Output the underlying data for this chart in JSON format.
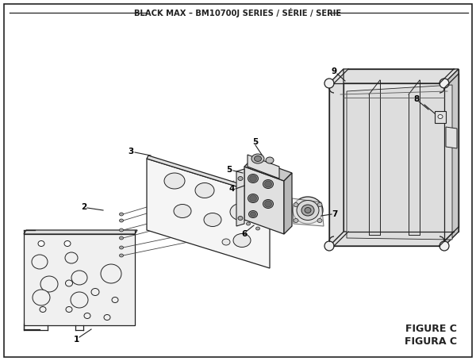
{
  "title": "BLACK MAX – BM10700J SERIES / SÉRIE / SERIE",
  "figure_label": "FIGURE C",
  "figura_label": "FIGURA C",
  "bg_color": "#ffffff",
  "lc": "#222222",
  "fc_light": "#f0f0f0",
  "fc_mid": "#e0e0e0",
  "fc_dark": "#c8c8c8",
  "fc_hole": "#bbbbbb"
}
